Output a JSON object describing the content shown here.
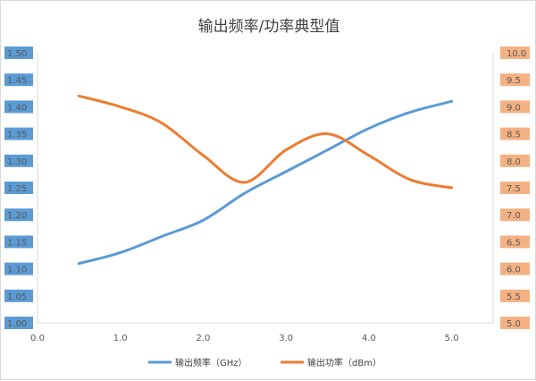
{
  "chart_data": {
    "type": "line",
    "title": "输出频率/功率典型值",
    "x": [
      0.5,
      1.0,
      1.5,
      2.0,
      2.5,
      3.0,
      3.5,
      4.0,
      4.5,
      5.0
    ],
    "xlim": [
      0.0,
      5.5
    ],
    "xticks": [
      "0.0",
      "1.0",
      "2.0",
      "3.0",
      "4.0",
      "5.0"
    ],
    "xtick_values": [
      0,
      1,
      2,
      3,
      4,
      5
    ],
    "y_left": {
      "lim": [
        1.0,
        1.5
      ],
      "ticks": [
        "1.00",
        "1.05",
        "1.10",
        "1.15",
        "1.20",
        "1.25",
        "1.30",
        "1.35",
        "1.40",
        "1.45",
        "1.50"
      ],
      "tick_bg": "#5b9bd5"
    },
    "y_right": {
      "lim": [
        5.0,
        10.0
      ],
      "ticks": [
        "5.0",
        "5.5",
        "6.0",
        "6.5",
        "7.0",
        "7.5",
        "8.0",
        "8.5",
        "9.0",
        "9.5",
        "10.0"
      ],
      "tick_bg": "#f4b183"
    },
    "series": [
      {
        "name": "输出频率（GHz）",
        "axis": "left",
        "color": "#5b9bd5",
        "values": [
          1.11,
          1.13,
          1.16,
          1.19,
          1.24,
          1.28,
          1.32,
          1.36,
          1.39,
          1.41
        ]
      },
      {
        "name": "输出功率（dBm）",
        "axis": "right",
        "color": "#ed7d31",
        "values": [
          9.2,
          9.0,
          8.7,
          8.1,
          7.6,
          8.2,
          8.5,
          8.1,
          7.65,
          7.5
        ]
      }
    ],
    "grid": false,
    "legend": "bottom"
  }
}
